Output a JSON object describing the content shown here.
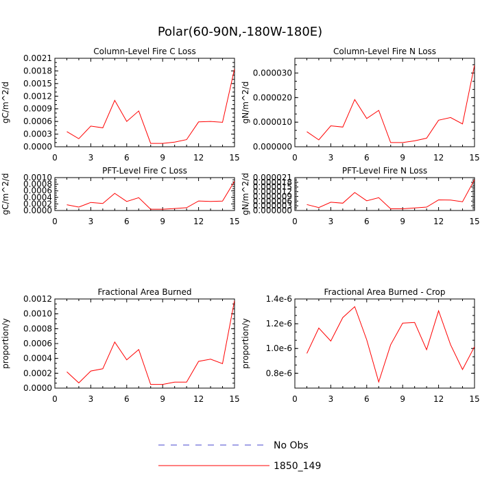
{
  "figure": {
    "title": "Polar(60-90N,-180W-180E)"
  },
  "legend": {
    "entries": [
      {
        "label": "No Obs",
        "color": "#4444cc",
        "style": "dashed"
      },
      {
        "label": "1850_149",
        "color": "#ff0000",
        "style": "solid"
      }
    ]
  },
  "chart_data": [
    {
      "type": "line",
      "title": "Column-Level Fire C Loss",
      "ylabel": "gC/m^2/d",
      "xlim": [
        0,
        15
      ],
      "ylim": [
        0,
        0.0021
      ],
      "xticks": [
        "0",
        "3",
        "6",
        "9",
        "12",
        "15"
      ],
      "yticks": [
        "0.0000",
        "0.0003",
        "0.0006",
        "0.0009",
        "0.0012",
        "0.0015",
        "0.0018",
        "0.0021"
      ],
      "x": [
        1,
        2,
        3,
        4,
        5,
        6,
        7,
        8,
        9,
        10,
        11,
        12,
        13,
        14,
        15
      ],
      "series": [
        {
          "name": "1850_149",
          "color": "#ff0000",
          "values": [
            0.00036,
            0.00019,
            0.00049,
            0.00045,
            0.0011,
            0.0006,
            0.00085,
            8e-05,
            8e-05,
            0.00011,
            0.00017,
            0.00059,
            0.0006,
            0.00058,
            0.00185
          ]
        }
      ]
    },
    {
      "type": "line",
      "title": "Column-Level Fire N Loss",
      "ylabel": "gN/m^2/d",
      "xlim": [
        0,
        15
      ],
      "ylim": [
        0,
        3.6e-05
      ],
      "xticks": [
        "0",
        "3",
        "6",
        "9",
        "12",
        "15"
      ],
      "yticks": [
        "0.000000",
        "0.000010",
        "0.000020",
        "0.000030"
      ],
      "ytick_values": [
        0,
        1e-05,
        2e-05,
        3e-05
      ],
      "x": [
        1,
        2,
        3,
        4,
        5,
        6,
        7,
        8,
        9,
        10,
        11,
        12,
        13,
        14,
        15
      ],
      "series": [
        {
          "name": "1850_149",
          "color": "#ff0000",
          "values": [
            6.1e-06,
            2.8e-06,
            8.5e-06,
            8e-06,
            1.92e-05,
            1.15e-05,
            1.48e-05,
            1.7e-06,
            1.7e-06,
            2.4e-06,
            3.5e-06,
            1.08e-05,
            1.19e-05,
            9.3e-06,
            3.32e-05
          ]
        }
      ]
    },
    {
      "type": "line",
      "title": "PFT-Level Fire C Loss",
      "ylabel": "gC/m^2/d",
      "xlim": [
        0,
        15
      ],
      "ylim": [
        0,
        0.001
      ],
      "xticks": [
        "0",
        "3",
        "6",
        "9",
        "12",
        "15"
      ],
      "yticks": [
        "0.0000",
        "0.0002",
        "0.0004",
        "0.0006",
        "0.0008",
        "0.0010"
      ],
      "x": [
        1,
        2,
        3,
        4,
        5,
        6,
        7,
        8,
        9,
        10,
        11,
        12,
        13,
        14,
        15
      ],
      "series": [
        {
          "name": "1850_149",
          "color": "#ff0000",
          "values": [
            0.000175,
            0.000105,
            0.000245,
            0.000215,
            0.00052,
            0.000275,
            0.00039,
            4e-05,
            4e-05,
            6e-05,
            8.5e-05,
            0.00029,
            0.000275,
            0.000285,
            0.00089
          ]
        }
      ]
    },
    {
      "type": "line",
      "title": "PFT-Level Fire N Loss",
      "ylabel": "gN/m^2/d",
      "xlim": [
        0,
        15
      ],
      "ylim": [
        0,
        2.1e-05
      ],
      "xticks": [
        "0",
        "3",
        "6",
        "9",
        "12",
        "15"
      ],
      "yticks": [
        "0.000000",
        "0.000003",
        "0.000006",
        "0.000009",
        "0.000012",
        "0.000015",
        "0.000018",
        "0.000021"
      ],
      "x": [
        1,
        2,
        3,
        4,
        5,
        6,
        7,
        8,
        9,
        10,
        11,
        12,
        13,
        14,
        15
      ],
      "series": [
        {
          "name": "1850_149",
          "color": "#ff0000",
          "values": [
            3.8e-06,
            1.9e-06,
            5.3e-06,
            4.7e-06,
            1.15e-05,
            6.2e-06,
            8.2e-06,
            1.1e-06,
            1.1e-06,
            1.6e-06,
            2.2e-06,
            6.8e-06,
            6.7e-06,
            5.6e-06,
            1.97e-05
          ]
        }
      ]
    },
    {
      "type": "line",
      "title": "Fractional Area Burned",
      "ylabel": "proportion/y",
      "xlim": [
        0,
        15
      ],
      "ylim": [
        0,
        0.0012
      ],
      "xticks": [
        "0",
        "3",
        "6",
        "9",
        "12",
        "15"
      ],
      "yticks": [
        "0.0000",
        "0.0002",
        "0.0004",
        "0.0006",
        "0.0008",
        "0.0010",
        "0.0012"
      ],
      "x": [
        1,
        2,
        3,
        4,
        5,
        6,
        7,
        8,
        9,
        10,
        11,
        12,
        13,
        14,
        15
      ],
      "series": [
        {
          "name": "1850_149",
          "color": "#ff0000",
          "values": [
            0.00022,
            7e-05,
            0.00023,
            0.00026,
            0.00062,
            0.00038,
            0.00052,
            5e-05,
            5e-05,
            8e-05,
            8e-05,
            0.00036,
            0.00039,
            0.00033,
            0.00118
          ]
        }
      ]
    },
    {
      "type": "line",
      "title": "Fractional Area Burned - Crop",
      "ylabel": "proportion/y",
      "xlim": [
        0,
        15
      ],
      "ylim": [
        6.8e-07,
        1.4e-06
      ],
      "xticks": [
        "0",
        "3",
        "6",
        "9",
        "12",
        "15"
      ],
      "yticks": [
        "0.8e-6",
        "1.0e-6",
        "1.2e-6",
        "1.4e-6"
      ],
      "ytick_values": [
        8e-07,
        1e-06,
        1.2e-06,
        1.4e-06
      ],
      "x": [
        1,
        2,
        3,
        4,
        5,
        6,
        7,
        8,
        9,
        10,
        11,
        12,
        13,
        14,
        15
      ],
      "series": [
        {
          "name": "1850_149",
          "color": "#ff0000",
          "values": [
            9.6e-07,
            1.165e-06,
            1.06e-06,
            1.25e-06,
            1.338e-06,
            1.07e-06,
            7.3e-07,
            1.03e-06,
            1.205e-06,
            1.21e-06,
            9.9e-07,
            1.305e-06,
            1.03e-06,
            8.3e-07,
            1.015e-06
          ]
        }
      ]
    }
  ]
}
